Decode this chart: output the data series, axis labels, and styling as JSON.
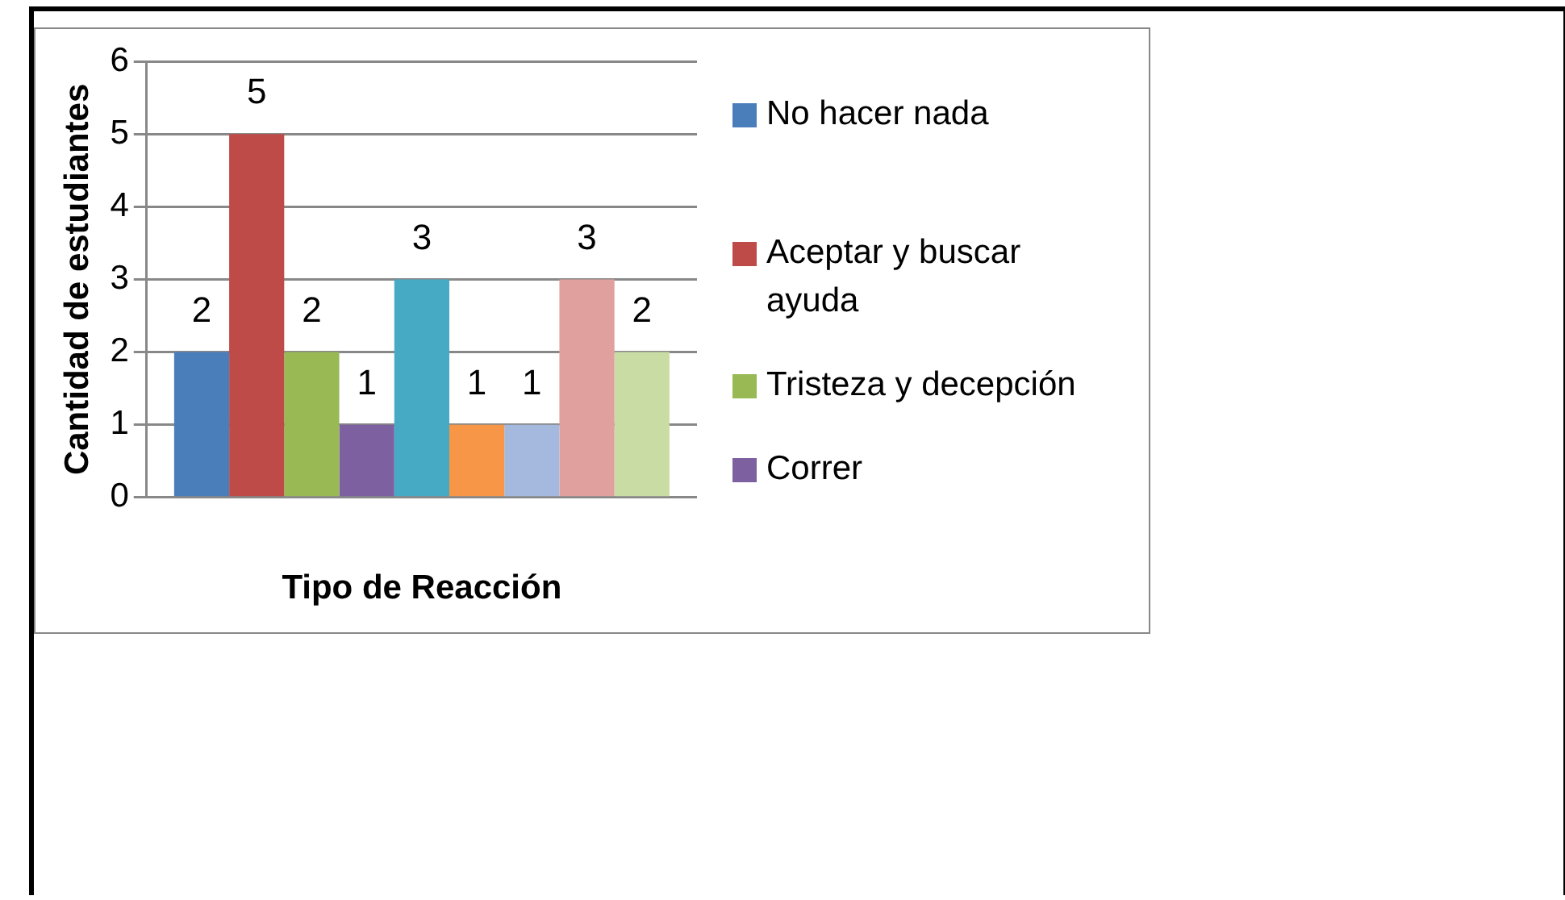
{
  "chart_data": {
    "type": "bar",
    "xlabel": "Tipo de Reacción",
    "ylabel": "Cantidad de estudiantes",
    "categories": [
      null
    ],
    "series": [
      {
        "name": "No hacer nada",
        "color": "#4a7ebb",
        "values": [
          2
        ]
      },
      {
        "name": "Aceptar y buscar ayuda",
        "color": "#be4b48",
        "values": [
          5
        ]
      },
      {
        "name": "Tristeza y decepción",
        "color": "#98b954",
        "values": [
          2
        ]
      },
      {
        "name": "Correr",
        "color": "#7d60a0",
        "values": [
          1
        ]
      },
      {
        "color": "#46aac5",
        "values": [
          3
        ]
      },
      {
        "color": "#f79646",
        "values": [
          1
        ]
      },
      {
        "color": "#a5b9de",
        "values": [
          1
        ]
      },
      {
        "color": "#e0a09e",
        "values": [
          3
        ]
      },
      {
        "color": "#c9dca4",
        "values": [
          2
        ]
      }
    ],
    "ylim": [
      0,
      6
    ],
    "yticks": [
      0,
      1,
      2,
      3,
      4,
      5,
      6
    ],
    "grid": "y",
    "legend": "right",
    "data_labels": true
  }
}
